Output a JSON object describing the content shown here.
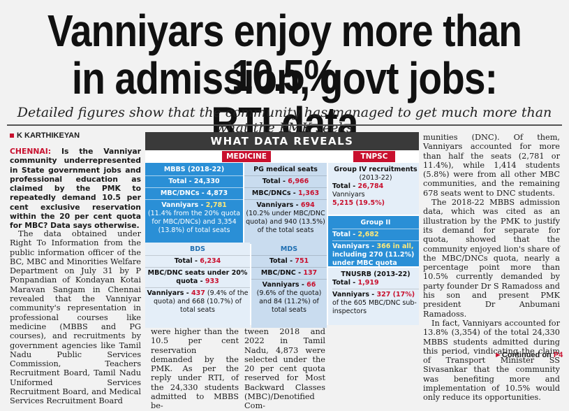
{
  "headline": {
    "line1": "Vanniyars enjoy more than 10.5%",
    "line2": "in admission, govt jobs: RTI data"
  },
  "dek": "Detailed figures show that the community has managed to get much more than what the PMK seeks",
  "byline": "K KARTHIKEYAN",
  "lead": {
    "dateline": "CHENNAI:",
    "text": " Is the Vanniyar community underrepresented in State government jobs and professional education as claimed by the PMK to repeatedly demand 10.5 per cent exclusive reservation within the 20 per cent quota for MBC? Data says otherwise."
  },
  "body": {
    "col1": "The data obtained under Right To Information from the public information officer of the BC, MBC and Minorities Welfare Department on July 31 by P Ponpandian of Kondayan Kotai Maravan Sangam in Chennai revealed that the Vanniyar community's representation in professional courses like medicine (MBBS and PG courses), and recruitments by government agencies like Tamil Nadu Public Services Commission, Teachers Recruitment Board, Tamil Nadu Uniformed Services Recruitment Board, and Medical Services Recruitment Board",
    "col2": "were higher than the 10.5 per cent reservation demanded by the PMK. As per the reply under RTI, of the 24,330 students admitted to MBBS be-",
    "col3": "tween 2018 and 2022 in Tamil Nadu, 4,873 were selected under the 20 per cent quota reserved for Most Backward Classes (MBC)/Denotified Com-",
    "right_p1": "munities (DNC). Of them, Vanniyars accounted for more than half the seats (2,781 or 11.4%), while 1,414 students (5.8%) were from all other MBC communities, and the remaining 678 seats went to DNC students.",
    "right_p2": "The 2018-22 MBBS admission data, which was cited as an illustration by the PMK to justify its demand for separate for quota, showed that the community enjoyed lion's share of the MBC/DNCs quota, nearly a percentage point more than 10.5% currently demanded by party founder Dr S Ramadoss and his son and present PMK president Dr Anbumani Ramadoss.",
    "right_p3": "In fact, Vanniyars accounted for 13.8% (3,354) of the total 24,330 MBBS students admitted during this period, vindicating the claim of Transport Minister SS Sivasankar that the community was benefiting more and implementation of 10.5% would only reduce its opportunities.",
    "continued_label": "Continued on",
    "continued_page": "P4"
  },
  "infographic": {
    "title": "WHAT DATA REVEALS",
    "medicine_tag": "MEDICINE",
    "tnpsc_tag": "TNPSC",
    "mbbs": {
      "title": "MBBS (2018-22)",
      "total": "Total - 24,330",
      "mbc": "MBC/DNCs - 4,873",
      "vanniyars_label": "Vanniyars - ",
      "vanniyars_value": "2,781",
      "note": "(11.4% from the 20% quota for MBC/DNCs) and 3,354 (13.8%) of total seats"
    },
    "pg": {
      "title": "PG medical seats",
      "total_label": "Total - ",
      "total_value": "6,966",
      "mbc_label": "MBC/DNCs - ",
      "mbc_value": "1,363",
      "vanniyars_label": "Vanniyars - ",
      "vanniyars_value": "694",
      "note": "(10.2% under MBC/DNC quota) and 940 (13.5%) of the total seats"
    },
    "bds": {
      "title": "BDS",
      "total_label": "Total - ",
      "total_value": "6,234",
      "mbc_label": "MBC/DNC seats under 20% quota - ",
      "mbc_value": "933",
      "vanniyars_label": "Vanniyars - ",
      "vanniyars_value": "437",
      "note": "(9.4% of the quota) and 668 (10.7%) of total seats"
    },
    "mds": {
      "title": "MDS",
      "total_label": "Total - ",
      "total_value": "751",
      "mbc_label": "MBC/DNC - ",
      "mbc_value": "137",
      "vanniyars_label": "Vanniyars - ",
      "vanniyars_value": "66",
      "note": "(9.6% of the quota) and 84 (11.2%) of total seats"
    },
    "group4": {
      "title": "Group IV recruitments",
      "years": "(2013-22)",
      "total_label": "Total - ",
      "total_value": "26,784",
      "vanniyars_label": "Vanniyars",
      "vanniyars_value": "5,215 (19.5%)"
    },
    "group2": {
      "title": "Group II",
      "total_label": "Total - ",
      "total_value": "2,682",
      "vanniyars_label": "Vanniyars - ",
      "vanniyars_value": "366 in all,",
      "note": "including 270 (11.2%) under MBC quota"
    },
    "tnusrb": {
      "title": "TNUSRB (2013-22)",
      "total_label": "Total - ",
      "total_value": "1,919",
      "vanniyars_label": "Vanniyars - ",
      "vanniyars_value": "327 (17%)",
      "note": "of the 605 MBC/DNC sub-inspectors"
    }
  }
}
